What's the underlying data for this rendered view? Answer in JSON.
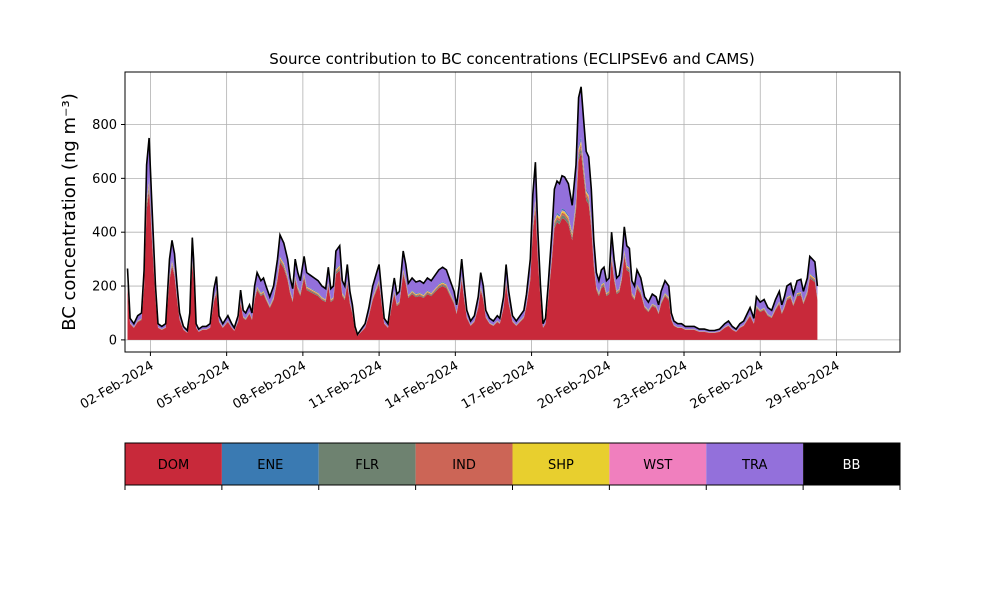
{
  "chart_data": {
    "type": "area",
    "title": "Source contribution to BC concentrations (ECLIPSEv6 and CAMS)",
    "xlabel": "",
    "ylabel": "BC concentration (ng m⁻³)",
    "xlim": [
      0,
      30.5
    ],
    "ylim": [
      -45,
      995
    ],
    "y_ticks": [
      0,
      200,
      400,
      600,
      800
    ],
    "x_ticks": [
      {
        "x": 1,
        "label": "02-Feb-2024"
      },
      {
        "x": 4,
        "label": "05-Feb-2024"
      },
      {
        "x": 7,
        "label": "08-Feb-2024"
      },
      {
        "x": 10,
        "label": "11-Feb-2024"
      },
      {
        "x": 13,
        "label": "14-Feb-2024"
      },
      {
        "x": 16,
        "label": "17-Feb-2024"
      },
      {
        "x": 19,
        "label": "20-Feb-2024"
      },
      {
        "x": 22,
        "label": "23-Feb-2024"
      },
      {
        "x": 25,
        "label": "26-Feb-2024"
      },
      {
        "x": 28,
        "label": "29-Feb-2024"
      }
    ],
    "grid": true,
    "x_unit": "days from 01-Feb-2024 00:00",
    "total": [
      [
        0.1,
        265
      ],
      [
        0.2,
        80
      ],
      [
        0.35,
        60
      ],
      [
        0.5,
        90
      ],
      [
        0.65,
        100
      ],
      [
        0.75,
        260
      ],
      [
        0.85,
        650
      ],
      [
        0.95,
        750
      ],
      [
        1.05,
        520
      ],
      [
        1.2,
        200
      ],
      [
        1.3,
        60
      ],
      [
        1.45,
        50
      ],
      [
        1.6,
        60
      ],
      [
        1.75,
        300
      ],
      [
        1.85,
        370
      ],
      [
        1.95,
        320
      ],
      [
        2.05,
        200
      ],
      [
        2.15,
        100
      ],
      [
        2.3,
        50
      ],
      [
        2.45,
        35
      ],
      [
        2.55,
        100
      ],
      [
        2.65,
        380
      ],
      [
        2.7,
        300
      ],
      [
        2.8,
        60
      ],
      [
        2.9,
        40
      ],
      [
        3.05,
        50
      ],
      [
        3.2,
        50
      ],
      [
        3.35,
        60
      ],
      [
        3.5,
        190
      ],
      [
        3.6,
        235
      ],
      [
        3.7,
        90
      ],
      [
        3.85,
        60
      ],
      [
        4.05,
        90
      ],
      [
        4.2,
        60
      ],
      [
        4.3,
        45
      ],
      [
        4.45,
        90
      ],
      [
        4.55,
        185
      ],
      [
        4.65,
        110
      ],
      [
        4.75,
        100
      ],
      [
        4.9,
        130
      ],
      [
        5.0,
        100
      ],
      [
        5.1,
        200
      ],
      [
        5.2,
        250
      ],
      [
        5.35,
        220
      ],
      [
        5.45,
        230
      ],
      [
        5.55,
        200
      ],
      [
        5.7,
        160
      ],
      [
        5.85,
        200
      ],
      [
        6.0,
        300
      ],
      [
        6.1,
        390
      ],
      [
        6.25,
        360
      ],
      [
        6.4,
        300
      ],
      [
        6.5,
        230
      ],
      [
        6.6,
        190
      ],
      [
        6.7,
        300
      ],
      [
        6.8,
        250
      ],
      [
        6.9,
        220
      ],
      [
        7.05,
        310
      ],
      [
        7.15,
        250
      ],
      [
        7.3,
        240
      ],
      [
        7.45,
        230
      ],
      [
        7.6,
        220
      ],
      [
        7.75,
        200
      ],
      [
        7.9,
        190
      ],
      [
        8.0,
        270
      ],
      [
        8.1,
        190
      ],
      [
        8.2,
        200
      ],
      [
        8.3,
        330
      ],
      [
        8.45,
        350
      ],
      [
        8.55,
        220
      ],
      [
        8.65,
        200
      ],
      [
        8.75,
        280
      ],
      [
        8.85,
        180
      ],
      [
        8.95,
        130
      ],
      [
        9.05,
        50
      ],
      [
        9.15,
        20
      ],
      [
        9.3,
        40
      ],
      [
        9.45,
        60
      ],
      [
        9.6,
        120
      ],
      [
        9.75,
        200
      ],
      [
        9.9,
        250
      ],
      [
        10.0,
        280
      ],
      [
        10.1,
        180
      ],
      [
        10.2,
        80
      ],
      [
        10.35,
        60
      ],
      [
        10.5,
        170
      ],
      [
        10.6,
        230
      ],
      [
        10.7,
        170
      ],
      [
        10.8,
        180
      ],
      [
        10.95,
        330
      ],
      [
        11.05,
        280
      ],
      [
        11.15,
        210
      ],
      [
        11.3,
        230
      ],
      [
        11.45,
        215
      ],
      [
        11.6,
        220
      ],
      [
        11.75,
        210
      ],
      [
        11.9,
        230
      ],
      [
        12.05,
        220
      ],
      [
        12.2,
        240
      ],
      [
        12.35,
        260
      ],
      [
        12.5,
        270
      ],
      [
        12.65,
        260
      ],
      [
        12.8,
        220
      ],
      [
        12.95,
        180
      ],
      [
        13.05,
        130
      ],
      [
        13.15,
        200
      ],
      [
        13.25,
        300
      ],
      [
        13.35,
        200
      ],
      [
        13.45,
        110
      ],
      [
        13.6,
        70
      ],
      [
        13.75,
        90
      ],
      [
        13.9,
        160
      ],
      [
        14.0,
        250
      ],
      [
        14.1,
        200
      ],
      [
        14.2,
        110
      ],
      [
        14.35,
        80
      ],
      [
        14.5,
        70
      ],
      [
        14.65,
        90
      ],
      [
        14.75,
        80
      ],
      [
        14.9,
        160
      ],
      [
        15.0,
        280
      ],
      [
        15.1,
        180
      ],
      [
        15.25,
        90
      ],
      [
        15.4,
        70
      ],
      [
        15.55,
        90
      ],
      [
        15.7,
        110
      ],
      [
        15.8,
        170
      ],
      [
        15.95,
        300
      ],
      [
        16.05,
        540
      ],
      [
        16.15,
        660
      ],
      [
        16.25,
        400
      ],
      [
        16.35,
        200
      ],
      [
        16.45,
        60
      ],
      [
        16.55,
        80
      ],
      [
        16.65,
        200
      ],
      [
        16.8,
        400
      ],
      [
        16.9,
        560
      ],
      [
        17.0,
        590
      ],
      [
        17.1,
        580
      ],
      [
        17.2,
        610
      ],
      [
        17.3,
        605
      ],
      [
        17.45,
        580
      ],
      [
        17.6,
        500
      ],
      [
        17.75,
        650
      ],
      [
        17.85,
        900
      ],
      [
        17.95,
        940
      ],
      [
        18.05,
        820
      ],
      [
        18.15,
        700
      ],
      [
        18.25,
        680
      ],
      [
        18.35,
        560
      ],
      [
        18.45,
        370
      ],
      [
        18.55,
        250
      ],
      [
        18.65,
        220
      ],
      [
        18.75,
        260
      ],
      [
        18.85,
        270
      ],
      [
        18.95,
        220
      ],
      [
        19.05,
        230
      ],
      [
        19.15,
        400
      ],
      [
        19.25,
        300
      ],
      [
        19.35,
        230
      ],
      [
        19.45,
        240
      ],
      [
        19.55,
        300
      ],
      [
        19.65,
        420
      ],
      [
        19.75,
        350
      ],
      [
        19.85,
        340
      ],
      [
        19.95,
        220
      ],
      [
        20.05,
        200
      ],
      [
        20.15,
        260
      ],
      [
        20.3,
        230
      ],
      [
        20.45,
        160
      ],
      [
        20.6,
        140
      ],
      [
        20.75,
        170
      ],
      [
        20.9,
        160
      ],
      [
        21.0,
        130
      ],
      [
        21.1,
        180
      ],
      [
        21.25,
        220
      ],
      [
        21.4,
        200
      ],
      [
        21.5,
        100
      ],
      [
        21.6,
        70
      ],
      [
        21.75,
        60
      ],
      [
        21.9,
        60
      ],
      [
        22.05,
        50
      ],
      [
        22.2,
        50
      ],
      [
        22.4,
        50
      ],
      [
        22.6,
        40
      ],
      [
        22.8,
        40
      ],
      [
        23.0,
        35
      ],
      [
        23.2,
        35
      ],
      [
        23.4,
        40
      ],
      [
        23.6,
        60
      ],
      [
        23.75,
        70
      ],
      [
        23.9,
        50
      ],
      [
        24.05,
        40
      ],
      [
        24.2,
        60
      ],
      [
        24.35,
        70
      ],
      [
        24.5,
        100
      ],
      [
        24.6,
        120
      ],
      [
        24.75,
        80
      ],
      [
        24.85,
        160
      ],
      [
        25.0,
        140
      ],
      [
        25.15,
        150
      ],
      [
        25.3,
        120
      ],
      [
        25.45,
        110
      ],
      [
        25.6,
        150
      ],
      [
        25.75,
        180
      ],
      [
        25.85,
        130
      ],
      [
        25.95,
        160
      ],
      [
        26.05,
        200
      ],
      [
        26.2,
        210
      ],
      [
        26.3,
        170
      ],
      [
        26.45,
        220
      ],
      [
        26.6,
        225
      ],
      [
        26.7,
        180
      ],
      [
        26.85,
        230
      ],
      [
        26.95,
        310
      ],
      [
        27.05,
        300
      ],
      [
        27.15,
        290
      ],
      [
        27.25,
        200
      ]
    ],
    "stack_order": [
      "DOM",
      "ENE",
      "FLR",
      "IND",
      "SHP",
      "WST",
      "TRA",
      "BB"
    ],
    "legend": [
      {
        "name": "DOM",
        "color": "#c8293a"
      },
      {
        "name": "ENE",
        "color": "#3a7ab2"
      },
      {
        "name": "FLR",
        "color": "#6e8270"
      },
      {
        "name": "IND",
        "color": "#cc6556"
      },
      {
        "name": "SHP",
        "color": "#e8cf2e"
      },
      {
        "name": "WST",
        "color": "#f07fbe"
      },
      {
        "name": "TRA",
        "color": "#9370db"
      },
      {
        "name": "BB",
        "color": "#000000"
      }
    ],
    "legend_placement": "below"
  }
}
